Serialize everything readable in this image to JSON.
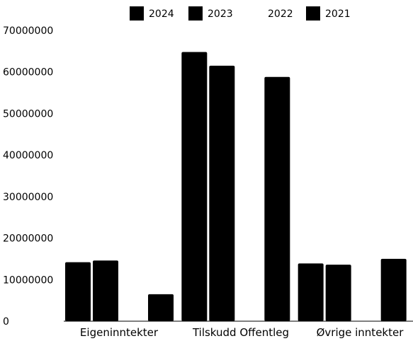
{
  "chart_data": {
    "type": "bar",
    "categories": [
      "Eigeninntekter",
      "Tilskudd Offentleg",
      "Øvrige inntekter"
    ],
    "series": [
      {
        "name": "2024",
        "values": [
          14200000,
          64800000,
          13900000
        ],
        "color": "#000000"
      },
      {
        "name": "2023",
        "values": [
          14600000,
          61500000,
          13600000
        ],
        "color": "#000000"
      },
      {
        "name": "2022",
        "values": [
          null,
          null,
          null
        ],
        "color": "#ffffff"
      },
      {
        "name": "2021",
        "values": [
          6500000,
          58800000,
          15000000
        ],
        "color": "#000000"
      }
    ],
    "yticks": [
      "70000000",
      "60000000",
      "50000000",
      "40000000",
      "30000000",
      "20000000",
      "10000000",
      "0"
    ],
    "ylim": [
      0,
      70000000
    ],
    "legend_position": "top",
    "grid": false
  }
}
